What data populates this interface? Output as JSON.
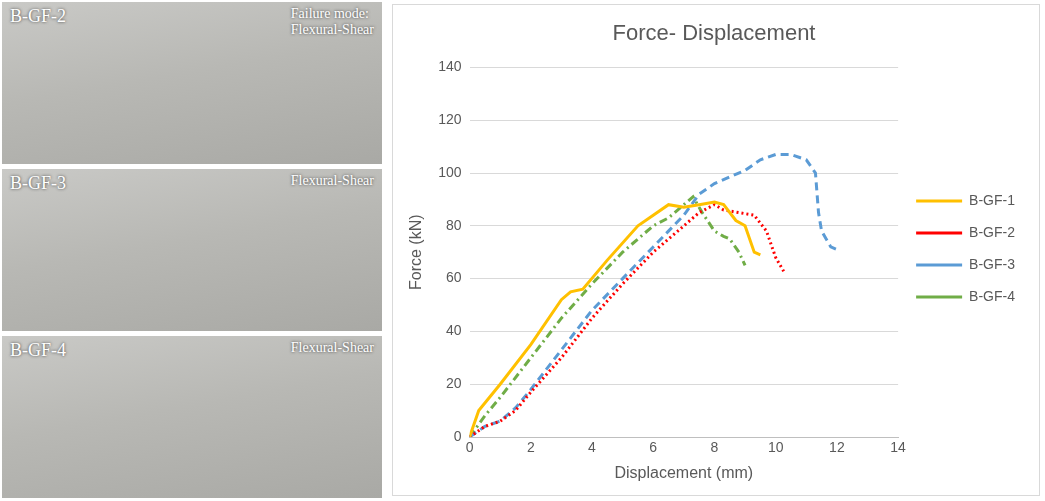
{
  "photos": [
    {
      "label": "B-GF-2",
      "caption": [
        "Failure mode:",
        "Flexural-Shear"
      ]
    },
    {
      "label": "B-GF-3",
      "caption": [
        "Flexural-Shear"
      ]
    },
    {
      "label": "B-GF-4",
      "caption": [
        "Flexural-Shear"
      ]
    }
  ],
  "chart_data": {
    "type": "line",
    "title": "Force- Displacement",
    "x_label": "Displacement (mm)",
    "y_label": "Force (kN)",
    "xlim": [
      0,
      14
    ],
    "xticks": [
      0,
      2,
      4,
      6,
      8,
      10,
      12,
      14
    ],
    "ylim": [
      0,
      140
    ],
    "yticks": [
      0,
      20,
      40,
      60,
      80,
      100,
      120,
      140
    ],
    "grid": "y",
    "legend": "right",
    "series": [
      {
        "name": "B-GF-1",
        "color": "#ffc000",
        "line_style": "solid",
        "x": [
          0,
          0.3,
          1,
          2,
          3,
          3.3,
          3.7,
          4.5,
          5.5,
          6,
          6.5,
          7,
          7.5,
          8,
          8.3,
          8.7,
          9,
          9.3,
          9.5
        ],
        "values": [
          0,
          10,
          20,
          35,
          52,
          55,
          56,
          67,
          80,
          84,
          88,
          87,
          88,
          89,
          88,
          82,
          80,
          70,
          69
        ]
      },
      {
        "name": "B-GF-2",
        "color": "#ff0000",
        "line_style": "dotted",
        "x": [
          0,
          0.5,
          1,
          1.5,
          2,
          3,
          4,
          5,
          6,
          7,
          7.5,
          8,
          8.3,
          8.8,
          9.3,
          9.7,
          10,
          10.3
        ],
        "values": [
          0,
          4,
          6,
          10,
          17,
          30,
          45,
          58,
          70,
          80,
          85,
          88,
          86,
          85,
          84,
          78,
          68,
          62
        ]
      },
      {
        "name": "B-GF-3",
        "color": "#5b9bd5",
        "line_style": "dashed",
        "x": [
          0,
          0.5,
          1,
          1.5,
          2,
          3,
          4,
          5,
          6,
          7,
          7.5,
          8,
          9,
          9.5,
          10,
          10.5,
          11,
          11.3,
          11.4,
          11.5,
          11.8,
          12
        ],
        "values": [
          0,
          4,
          6,
          11,
          18,
          33,
          48,
          60,
          72,
          84,
          92,
          96,
          101,
          105,
          107,
          107,
          105,
          100,
          85,
          78,
          72,
          71
        ]
      },
      {
        "name": "B-GF-4",
        "color": "#70ad47",
        "line_style": "dashdot",
        "x": [
          0,
          0.5,
          1,
          2,
          3,
          4,
          5,
          6,
          6.5,
          7,
          7.3,
          7.6,
          8,
          8.3,
          8.5,
          8.8,
          9
        ],
        "values": [
          0,
          8,
          15,
          30,
          45,
          58,
          70,
          80,
          83,
          88,
          91,
          85,
          78,
          76,
          75,
          70,
          65
        ]
      }
    ]
  }
}
